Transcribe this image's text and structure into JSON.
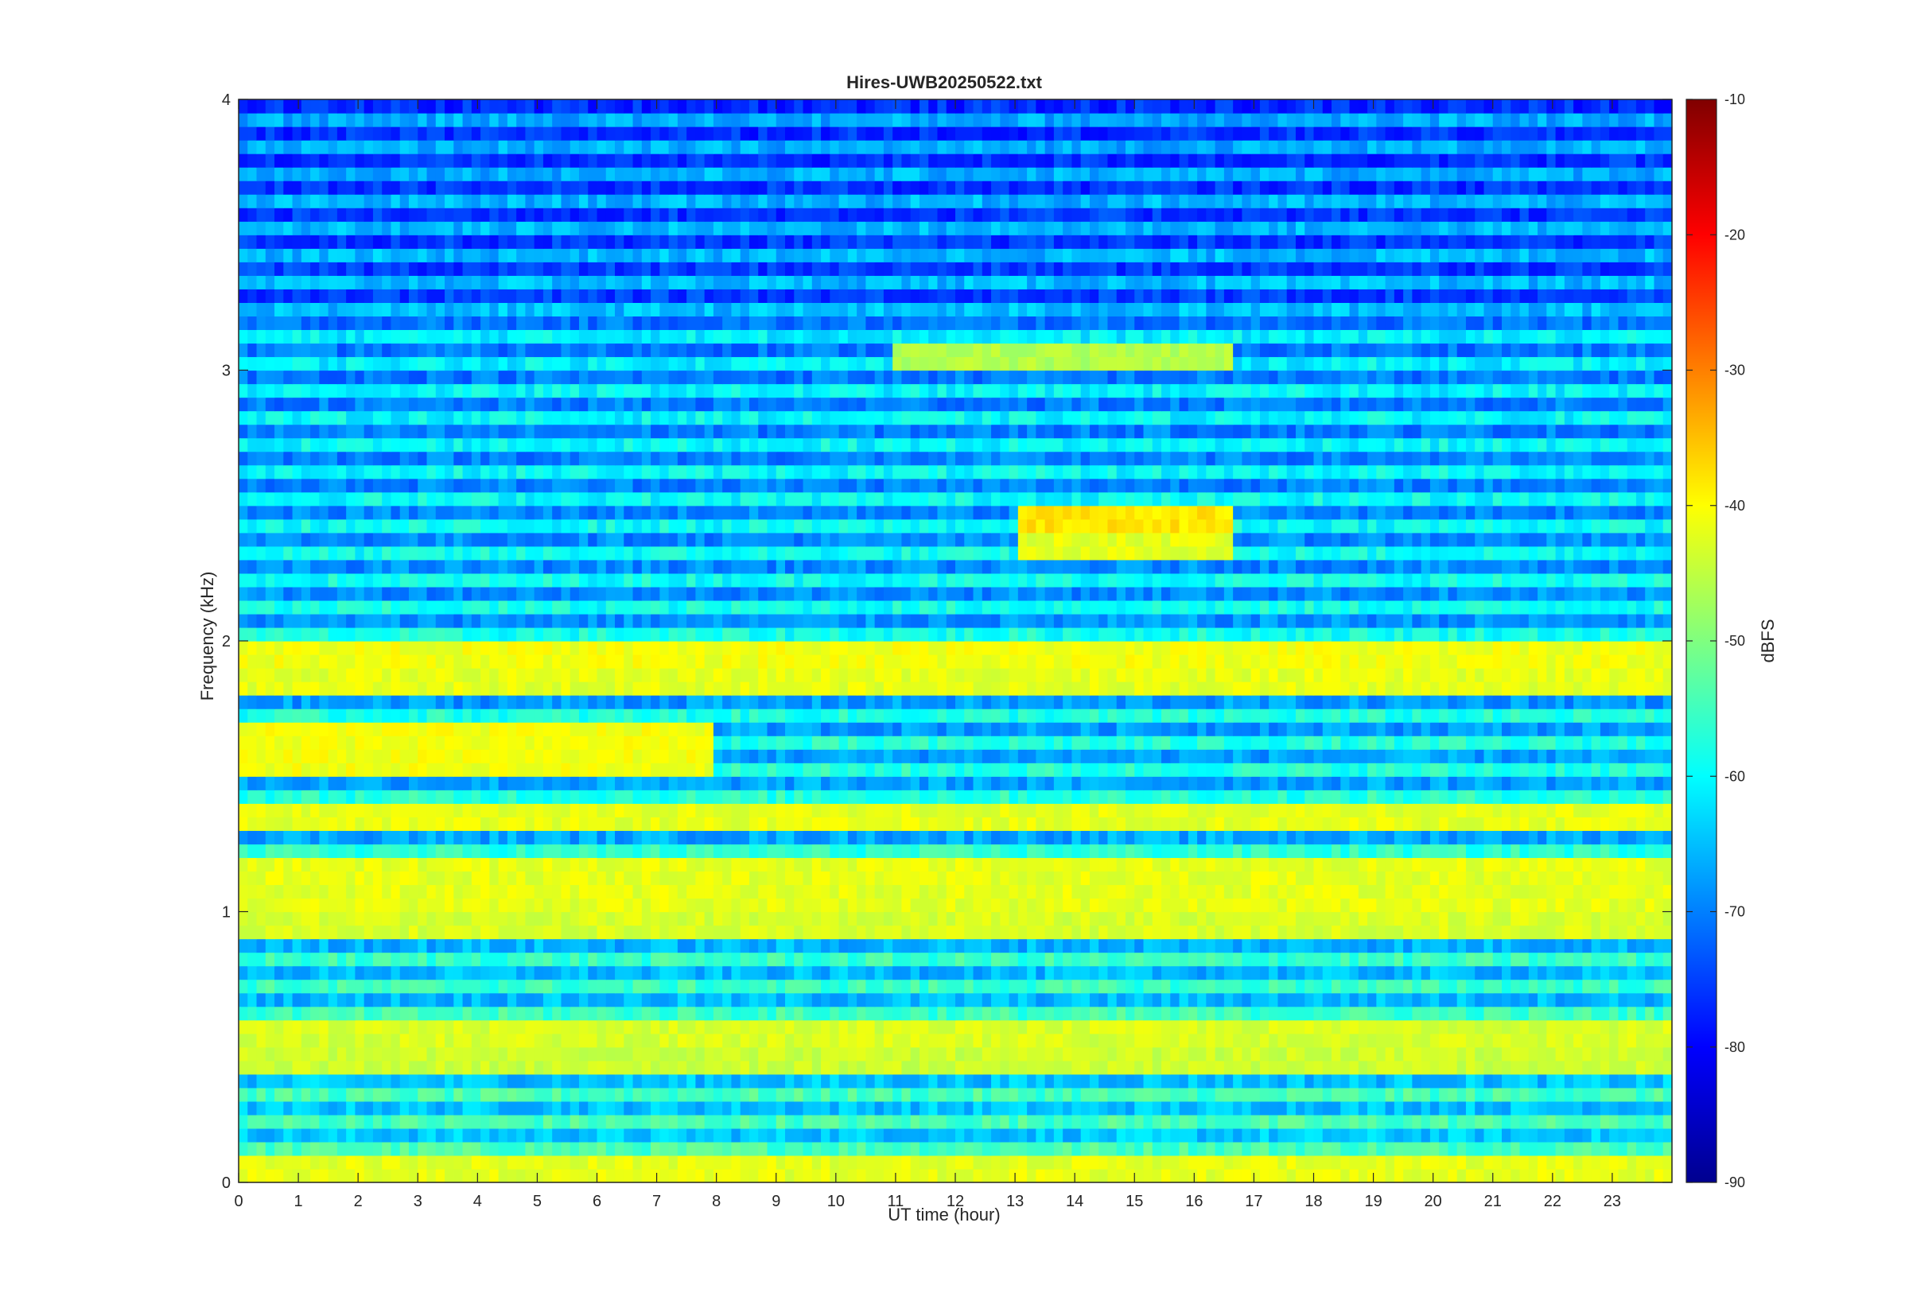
{
  "chart_data": {
    "type": "heatmap",
    "title": "Hires-UWB20250522.txt",
    "xlabel": "UT time (hour)",
    "ylabel": "Frequency (kHz)",
    "xlim": [
      0,
      24
    ],
    "ylim": [
      0,
      4
    ],
    "x_ticks": [
      "0",
      "1",
      "2",
      "3",
      "4",
      "5",
      "6",
      "7",
      "8",
      "9",
      "10",
      "11",
      "12",
      "13",
      "14",
      "15",
      "16",
      "17",
      "18",
      "19",
      "20",
      "21",
      "22",
      "23"
    ],
    "y_ticks": [
      "0",
      "1",
      "2",
      "3",
      "4"
    ],
    "colorbar": {
      "label": "dBFS",
      "clim": [
        -90,
        -10
      ],
      "ticks": [
        "-10",
        "-20",
        "-30",
        "-40",
        "-50",
        "-60",
        "-70",
        "-80",
        "-90"
      ],
      "colormap": "jet"
    },
    "background_level_dbfs": -62,
    "features": [
      {
        "kind": "band",
        "freq_khz": 0.04,
        "level_dbfs": -42,
        "x_range": [
          0,
          24
        ]
      },
      {
        "kind": "band",
        "freq_khz": 0.45,
        "level_dbfs": -44,
        "x_range": [
          0,
          24
        ]
      },
      {
        "kind": "band",
        "freq_khz": 0.55,
        "level_dbfs": -43,
        "x_range": [
          0,
          24
        ]
      },
      {
        "kind": "band",
        "freq_khz": 0.95,
        "level_dbfs": -43,
        "x_range": [
          0,
          24
        ]
      },
      {
        "kind": "band",
        "freq_khz": 1.05,
        "level_dbfs": -42,
        "x_range": [
          0,
          24
        ]
      },
      {
        "kind": "band",
        "freq_khz": 1.15,
        "level_dbfs": -42,
        "x_range": [
          0,
          24
        ]
      },
      {
        "kind": "band",
        "freq_khz": 1.35,
        "level_dbfs": -42,
        "x_range": [
          0,
          24
        ]
      },
      {
        "kind": "band",
        "freq_khz": 1.55,
        "level_dbfs": -41,
        "x_range": [
          0,
          8
        ]
      },
      {
        "kind": "band",
        "freq_khz": 1.65,
        "level_dbfs": -41,
        "x_range": [
          0,
          8
        ]
      },
      {
        "kind": "band",
        "freq_khz": 1.85,
        "level_dbfs": -42,
        "x_range": [
          0,
          24
        ]
      },
      {
        "kind": "band",
        "freq_khz": 1.95,
        "level_dbfs": -41,
        "x_range": [
          0,
          24
        ]
      },
      {
        "kind": "band",
        "freq_khz": 2.45,
        "level_dbfs": -38,
        "x_range": [
          13,
          16.6
        ]
      },
      {
        "kind": "band",
        "freq_khz": 2.35,
        "level_dbfs": -42,
        "x_range": [
          13,
          16.6
        ]
      },
      {
        "kind": "band",
        "freq_khz": 3.05,
        "level_dbfs": -46,
        "x_range": [
          11,
          16.6
        ]
      }
    ]
  }
}
